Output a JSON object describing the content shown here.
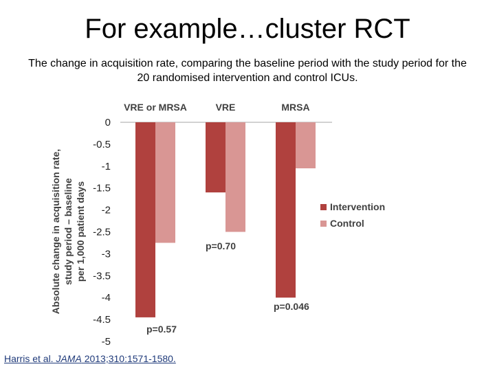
{
  "slide": {
    "title": "For example…cluster RCT",
    "subtitle": "The change in acquisition rate, comparing the baseline period with the study period for the 20 randomised intervention and control ICUs."
  },
  "citation": {
    "authors": "Harris et al. ",
    "journal": "JAMA",
    "details": " 2013;310:1571-1580."
  },
  "chart_data": {
    "type": "bar",
    "categories": [
      "VRE or MRSA",
      "VRE",
      "MRSA"
    ],
    "series": [
      {
        "name": "Intervention",
        "color": "#b0413e",
        "values": [
          -4.45,
          -1.6,
          -4.0
        ]
      },
      {
        "name": "Control",
        "color": "#d99694",
        "values": [
          -2.75,
          -2.5,
          -1.05
        ]
      }
    ],
    "annotations": [
      "p=0.57",
      "p=0.70",
      "p=0.046"
    ],
    "ylabel_lines": [
      "Absolute change in acquisition rate,",
      "study period – baseline",
      "per 1,000 patient days"
    ],
    "ylim": [
      -5,
      0
    ],
    "yticks": [
      0,
      -0.5,
      -1,
      -1.5,
      -2,
      -2.5,
      -3,
      -3.5,
      -4,
      -4.5,
      -5
    ],
    "ytick_labels": [
      "0",
      "-0.5",
      "-1",
      "-1.5",
      "-2",
      "-2.5",
      "-3",
      "-3.5",
      "-4",
      "-4.5",
      "-5"
    ],
    "legend_position": "right"
  }
}
